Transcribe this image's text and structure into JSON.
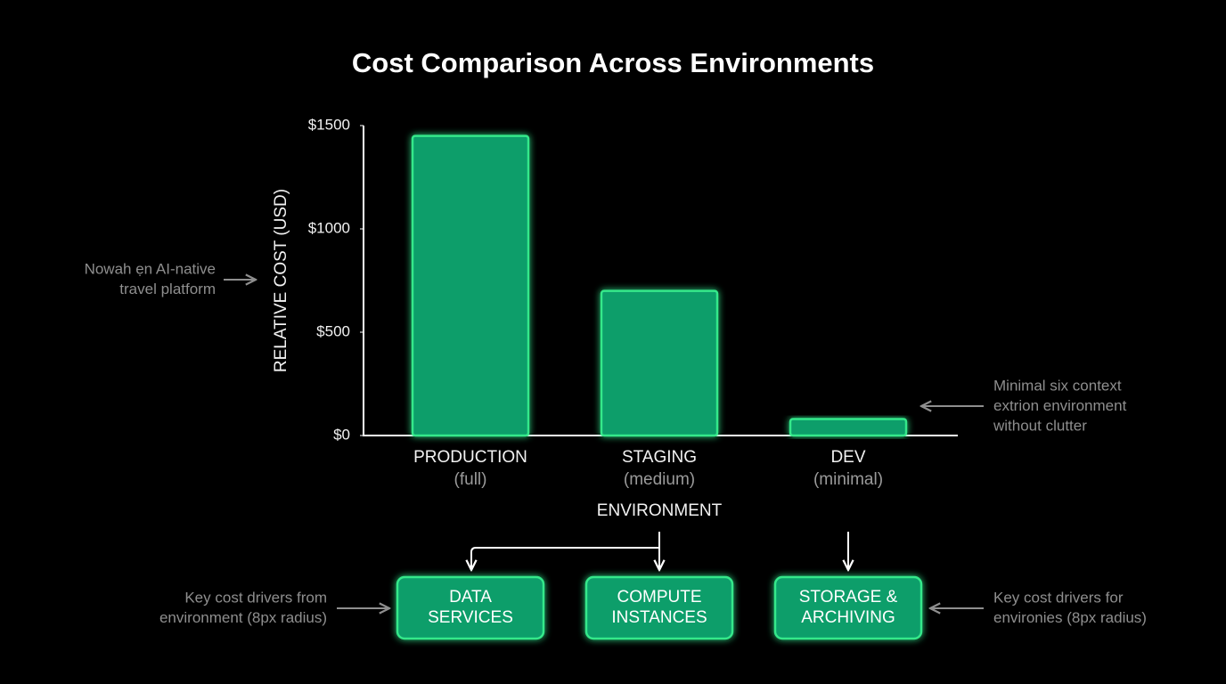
{
  "chart_data": {
    "type": "bar",
    "title": "Cost Comparison Across Environments",
    "categories": [
      "PRODUCTION",
      "STAGING",
      "DEV"
    ],
    "category_notes": [
      "(full)",
      "(medium)",
      "(minimal)"
    ],
    "values": [
      1450,
      700,
      80
    ],
    "color": "#0b9e6b",
    "ylim": [
      0,
      1500
    ],
    "yticks": [
      {
        "value": 0,
        "label": "$0"
      },
      {
        "value": 500,
        "label": "$500"
      },
      {
        "value": 1000,
        "label": "$1000"
      },
      {
        "value": 1500,
        "label": "$1500"
      }
    ],
    "y_label": "RELATIVE COST (USD)",
    "x_label": "ENVIRONMENT",
    "grid": false
  },
  "annotations": [
    [
      "Nowah ẹn AI-native",
      "travel platform"
    ],
    [
      "Minimal six context",
      "extrion environment",
      "without clutter"
    ],
    [
      "Key cost drivers from",
      "environment (8px radius)"
    ],
    [
      "Key cost drivers for",
      "environies (8px radius)"
    ]
  ],
  "cost_drivers": [
    [
      "DATA",
      "SERVICES"
    ],
    [
      "COMPUTE",
      "INSTANCES"
    ],
    [
      "STORAGE &",
      "ARCHIVING"
    ]
  ]
}
